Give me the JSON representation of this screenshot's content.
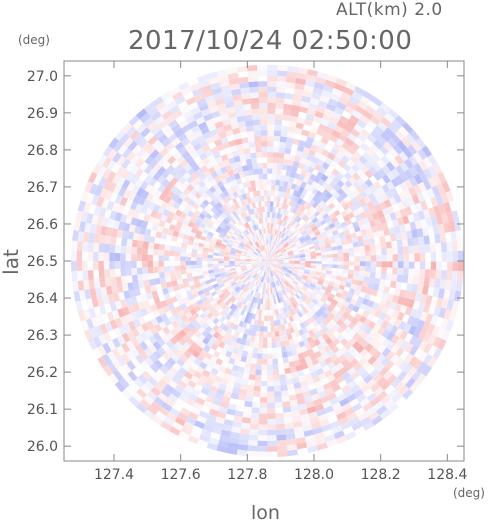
{
  "header": {
    "altitude_label": "ALT(km) 2.0",
    "timestamp": "2017/10/24 02:50:00"
  },
  "chart_data": {
    "type": "heatmap",
    "subtype": "radar-ppi",
    "title": "2017/10/24 02:50:00",
    "annotation": "ALT(km) 2.0",
    "xlabel": "lon",
    "ylabel": "lat",
    "x_unit": "(deg)",
    "y_unit": "(deg)",
    "xlim": [
      127.25,
      128.45
    ],
    "ylim": [
      25.96,
      27.04
    ],
    "x_ticks": [
      "127.4",
      "127.6",
      "127.8",
      "128.0",
      "128.2",
      "128.4"
    ],
    "y_ticks": [
      "26.0",
      "26.1",
      "26.2",
      "26.3",
      "26.4",
      "26.5",
      "26.6",
      "26.7",
      "26.8",
      "26.9",
      "27.0"
    ],
    "radar_center": {
      "lon": 127.86,
      "lat": 26.5
    },
    "radar_radius_deg_lat": 0.53,
    "colors": {
      "positive": "#f8b3b3",
      "negative": "#b3b8f8",
      "neutral": "#ffffff",
      "frame": "#888888"
    },
    "grid": false,
    "legend": "none"
  }
}
